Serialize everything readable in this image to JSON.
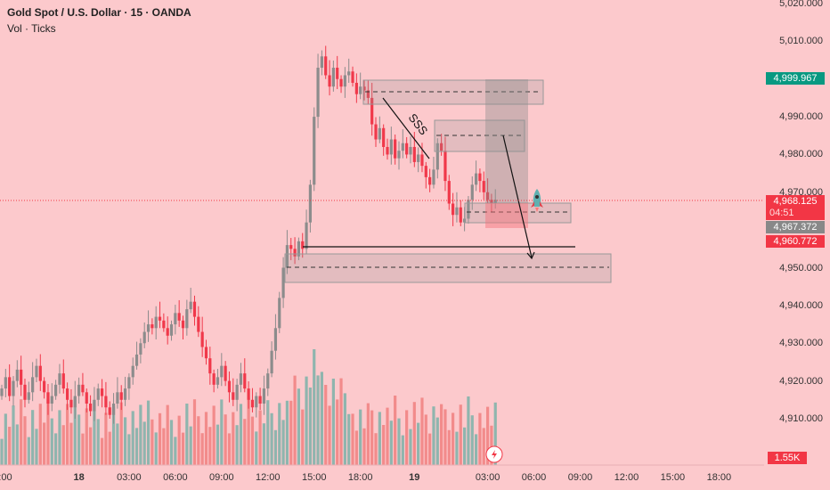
{
  "header": {
    "title": "Gold Spot / U.S. Dollar · 15 · OANDA",
    "volume_label": "Vol · Ticks"
  },
  "colors": {
    "bg": "#fcc9cc",
    "up": "#8c8c8c",
    "down": "#f0384a",
    "vol_up": "#8fb5ae",
    "vol_down": "#f28b8b",
    "green_badge": "#089981",
    "red_badge": "#f23645",
    "gray_badge": "#888888"
  },
  "price_badges": {
    "last_high": "4,999.967",
    "current": "4,968.125",
    "countdown": "04:51",
    "mid": "4,967.372",
    "low": "4,960.772",
    "volume": "1.55K"
  },
  "drawings": {
    "sss_label": "SSS"
  },
  "chart_data": {
    "type": "candlestick",
    "title": "Gold Spot / U.S. Dollar · 15 · OANDA",
    "ylim": [
      4905,
      5021
    ],
    "y_ticks": [
      "5,020.000",
      "5,010.000",
      "4,990.000",
      "4,980.000",
      "4,970.000",
      "4,950.000",
      "4,940.000",
      "4,930.000",
      "4,920.000",
      "4,910.000"
    ],
    "y_tick_values": [
      5020,
      5010,
      4990,
      4980,
      4970,
      4950,
      4940,
      4930,
      4920,
      4910
    ],
    "x_ticks": [
      ":00",
      "18",
      "03:00",
      "06:00",
      "09:00",
      "12:00",
      "15:00",
      "18:00",
      "19",
      "03:00",
      "06:00",
      "09:00",
      "12:00",
      "15:00",
      "18:00"
    ],
    "x_tick_index": [
      0,
      20,
      33,
      45,
      57,
      69,
      81,
      93,
      107,
      126,
      138,
      150,
      162,
      174,
      186
    ],
    "start_open": 4916,
    "closes": [
      4918,
      4921,
      4916,
      4920,
      4923,
      4919,
      4915,
      4917,
      4921,
      4924,
      4920,
      4917,
      4914,
      4916,
      4919,
      4922,
      4918,
      4915,
      4913,
      4916,
      4919,
      4917,
      4914,
      4912,
      4915,
      4918,
      4916,
      4913,
      4911,
      4914,
      4917,
      4915,
      4918,
      4921,
      4924,
      4927,
      4930,
      4933,
      4935,
      4934,
      4937,
      4936,
      4934,
      4932,
      4935,
      4938,
      4936,
      4934,
      4939,
      4941,
      4937,
      4933,
      4929,
      4926,
      4922,
      4919,
      4921,
      4924,
      4920,
      4917,
      4915,
      4919,
      4922,
      4918,
      4915,
      4913,
      4916,
      4914,
      4918,
      4922,
      4928,
      4934,
      4942,
      4950,
      4956,
      4955,
      4953,
      4957,
      4955,
      4962,
      4972,
      4990,
      5003,
      5006,
      5001,
      4998,
      5003,
      5000,
      4998,
      5001,
      5002,
      4999,
      4996,
      4998,
      4997,
      4995,
      4988,
      4984,
      4987,
      4982,
      4980,
      4984,
      4979,
      4981,
      4983,
      4980,
      4982,
      4978,
      4980,
      4977,
      4974,
      4972,
      4976,
      4983,
      4981,
      4973,
      4967,
      4964,
      4966,
      4962,
      4963,
      4968,
      4972,
      4975,
      4973,
      4970,
      4968,
      4967,
      4968
    ]
  }
}
